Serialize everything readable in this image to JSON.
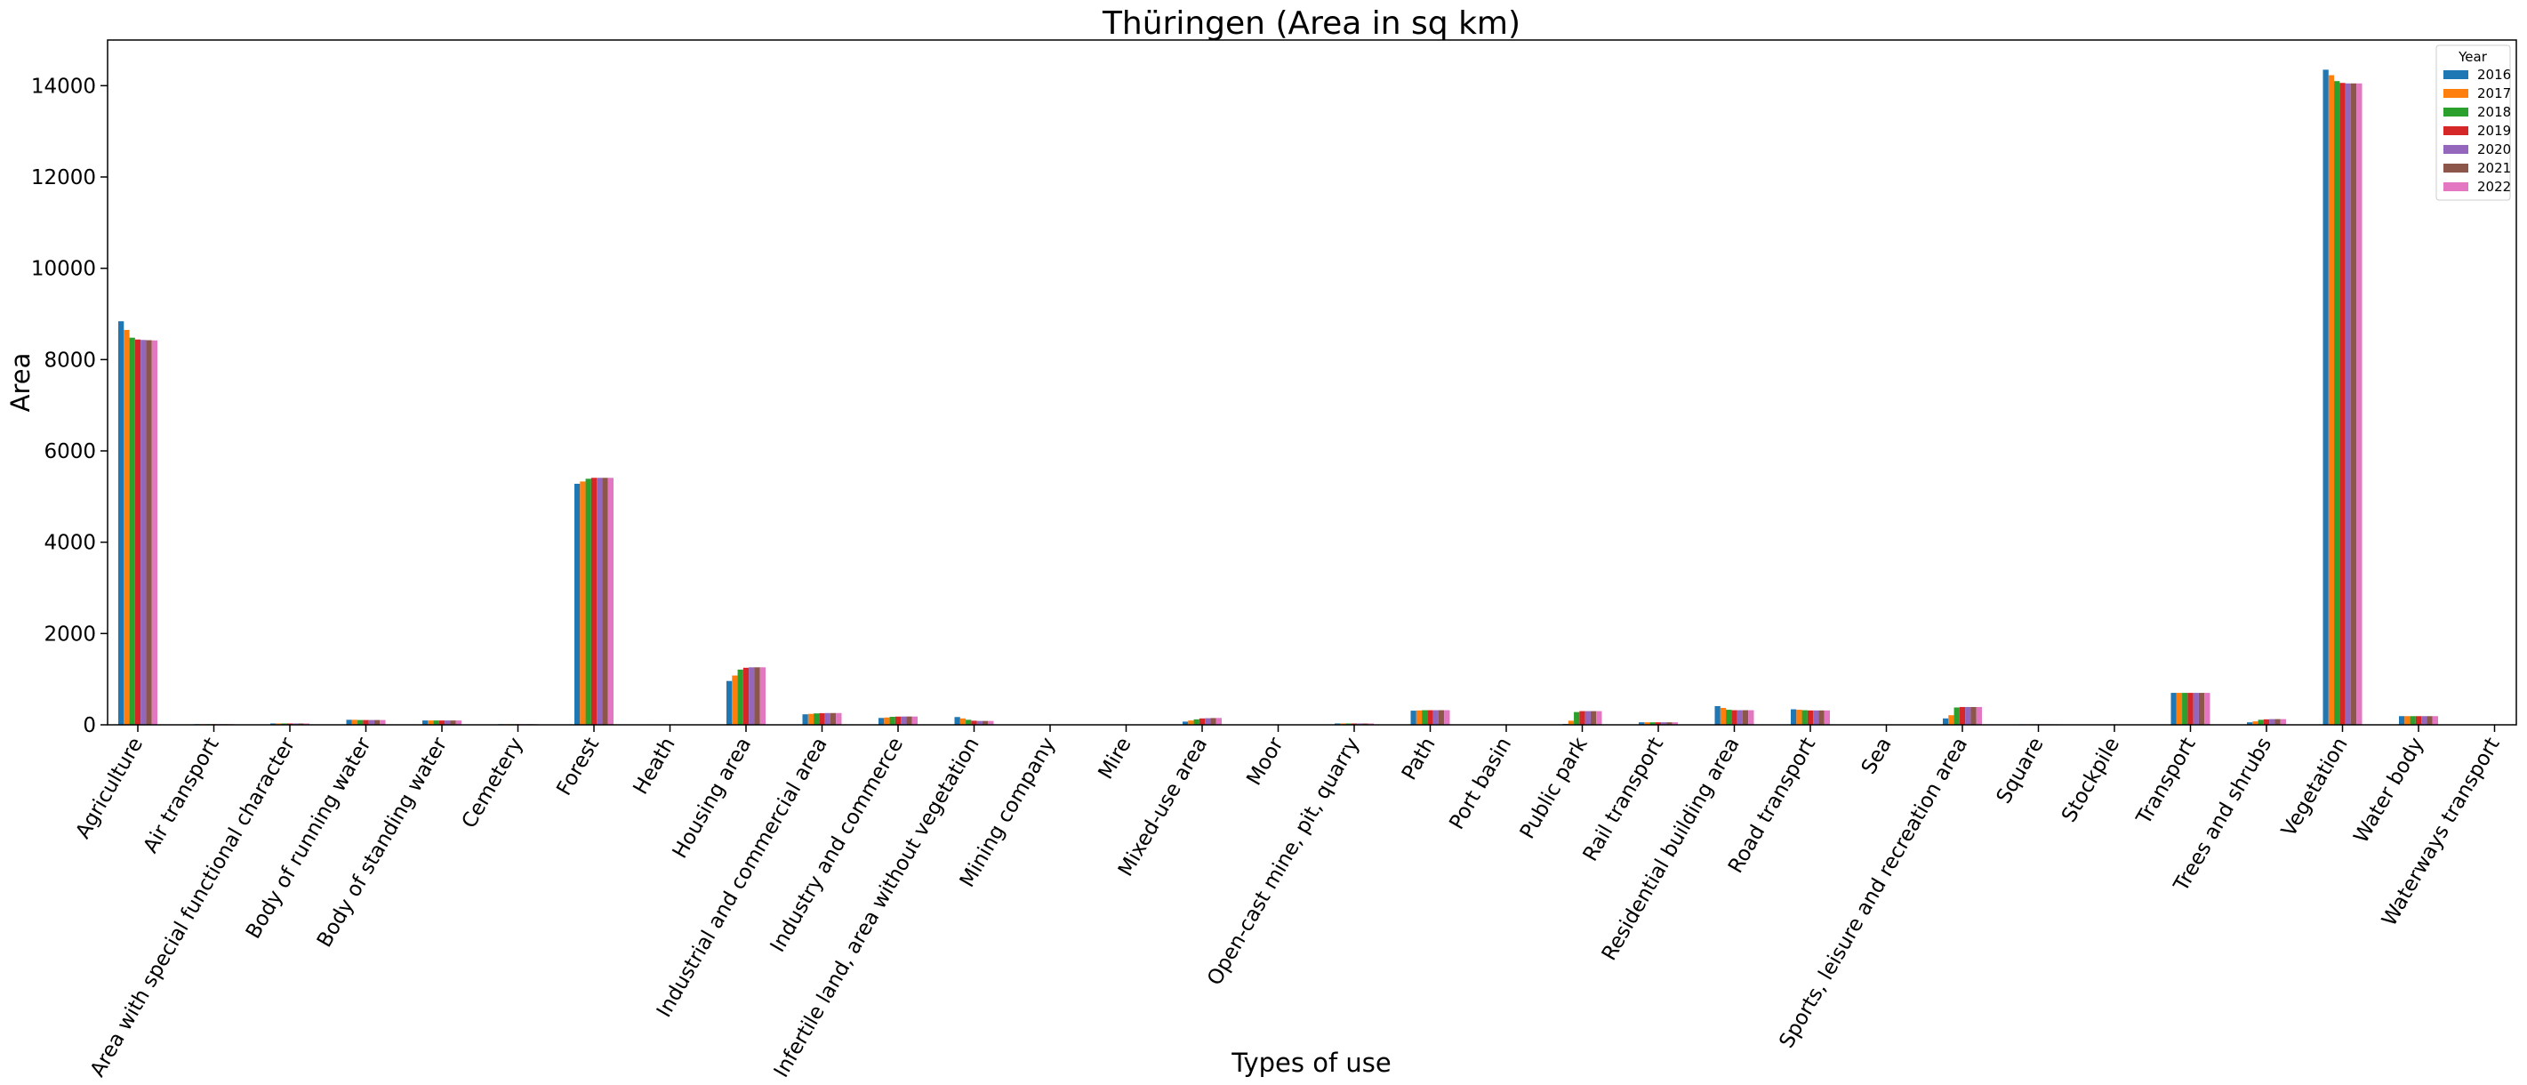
{
  "chart_data": {
    "type": "bar",
    "title": "Thüringen (Area in sq km)",
    "xlabel": "Types of use",
    "ylabel": "Area",
    "ylim": [
      0,
      15000
    ],
    "yticks": [
      0,
      2000,
      4000,
      6000,
      8000,
      10000,
      12000,
      14000
    ],
    "grid": false,
    "legend": {
      "title": "Year",
      "placement": "top-right"
    },
    "categories": [
      "Agriculture",
      "Air transport",
      "Area with special functional character",
      "Body of running water",
      "Body of standing water",
      "Cemetery",
      "Forest",
      "Heath",
      "Housing area",
      "Industrial and commercial area",
      "Industry and commerce",
      "Infertile land, area without vegetation",
      "Mining company",
      "Mire",
      "Mixed-use area",
      "Moor",
      "Open-cast mine, pit, quarry",
      "Path",
      "Port basin",
      "Public park",
      "Rail transport",
      "Residential building area",
      "Road transport",
      "Sea",
      "Sports, leisure and recreation area",
      "Square",
      "Stockpile",
      "Transport",
      "Trees and shrubs",
      "Vegetation",
      "Water body",
      "Waterways transport"
    ],
    "series": [
      {
        "name": "2016",
        "color": "#1f77b4",
        "values": [
          8840,
          15,
          30,
          110,
          95,
          15,
          5280,
          10,
          960,
          230,
          150,
          170,
          0,
          0,
          70,
          0,
          30,
          310,
          0,
          20,
          55,
          410,
          340,
          0,
          140,
          12,
          8,
          700,
          55,
          14350,
          190,
          3
        ]
      },
      {
        "name": "2017",
        "color": "#ff7f0e",
        "values": [
          8650,
          15,
          30,
          110,
          95,
          15,
          5330,
          10,
          1080,
          240,
          160,
          140,
          0,
          0,
          95,
          0,
          30,
          315,
          0,
          90,
          55,
          370,
          330,
          0,
          210,
          12,
          8,
          700,
          75,
          14230,
          190,
          3
        ]
      },
      {
        "name": "2018",
        "color": "#2ca02c",
        "values": [
          8480,
          15,
          30,
          105,
          95,
          15,
          5390,
          10,
          1210,
          250,
          175,
          110,
          0,
          0,
          120,
          0,
          30,
          320,
          0,
          280,
          55,
          330,
          320,
          0,
          380,
          12,
          8,
          700,
          110,
          14100,
          190,
          3
        ]
      },
      {
        "name": "2019",
        "color": "#d62728",
        "values": [
          8440,
          15,
          30,
          105,
          95,
          15,
          5410,
          10,
          1250,
          255,
          180,
          90,
          0,
          0,
          140,
          0,
          30,
          320,
          0,
          300,
          55,
          320,
          315,
          0,
          390,
          12,
          8,
          700,
          120,
          14060,
          190,
          3
        ]
      },
      {
        "name": "2020",
        "color": "#9467bd",
        "values": [
          8430,
          15,
          30,
          105,
          95,
          15,
          5410,
          10,
          1260,
          258,
          182,
          85,
          0,
          0,
          145,
          0,
          30,
          320,
          0,
          300,
          55,
          320,
          315,
          0,
          390,
          12,
          8,
          700,
          125,
          14050,
          190,
          3
        ]
      },
      {
        "name": "2021",
        "color": "#8c564b",
        "values": [
          8425,
          15,
          30,
          105,
          95,
          15,
          5410,
          10,
          1260,
          258,
          182,
          85,
          0,
          0,
          148,
          0,
          30,
          320,
          0,
          300,
          55,
          320,
          315,
          0,
          390,
          12,
          8,
          700,
          125,
          14050,
          190,
          3
        ]
      },
      {
        "name": "2022",
        "color": "#e377c2",
        "values": [
          8420,
          15,
          30,
          105,
          95,
          15,
          5410,
          10,
          1260,
          258,
          182,
          85,
          0,
          0,
          150,
          0,
          30,
          320,
          0,
          300,
          55,
          320,
          315,
          0,
          390,
          12,
          8,
          700,
          125,
          14050,
          190,
          3
        ]
      }
    ]
  }
}
